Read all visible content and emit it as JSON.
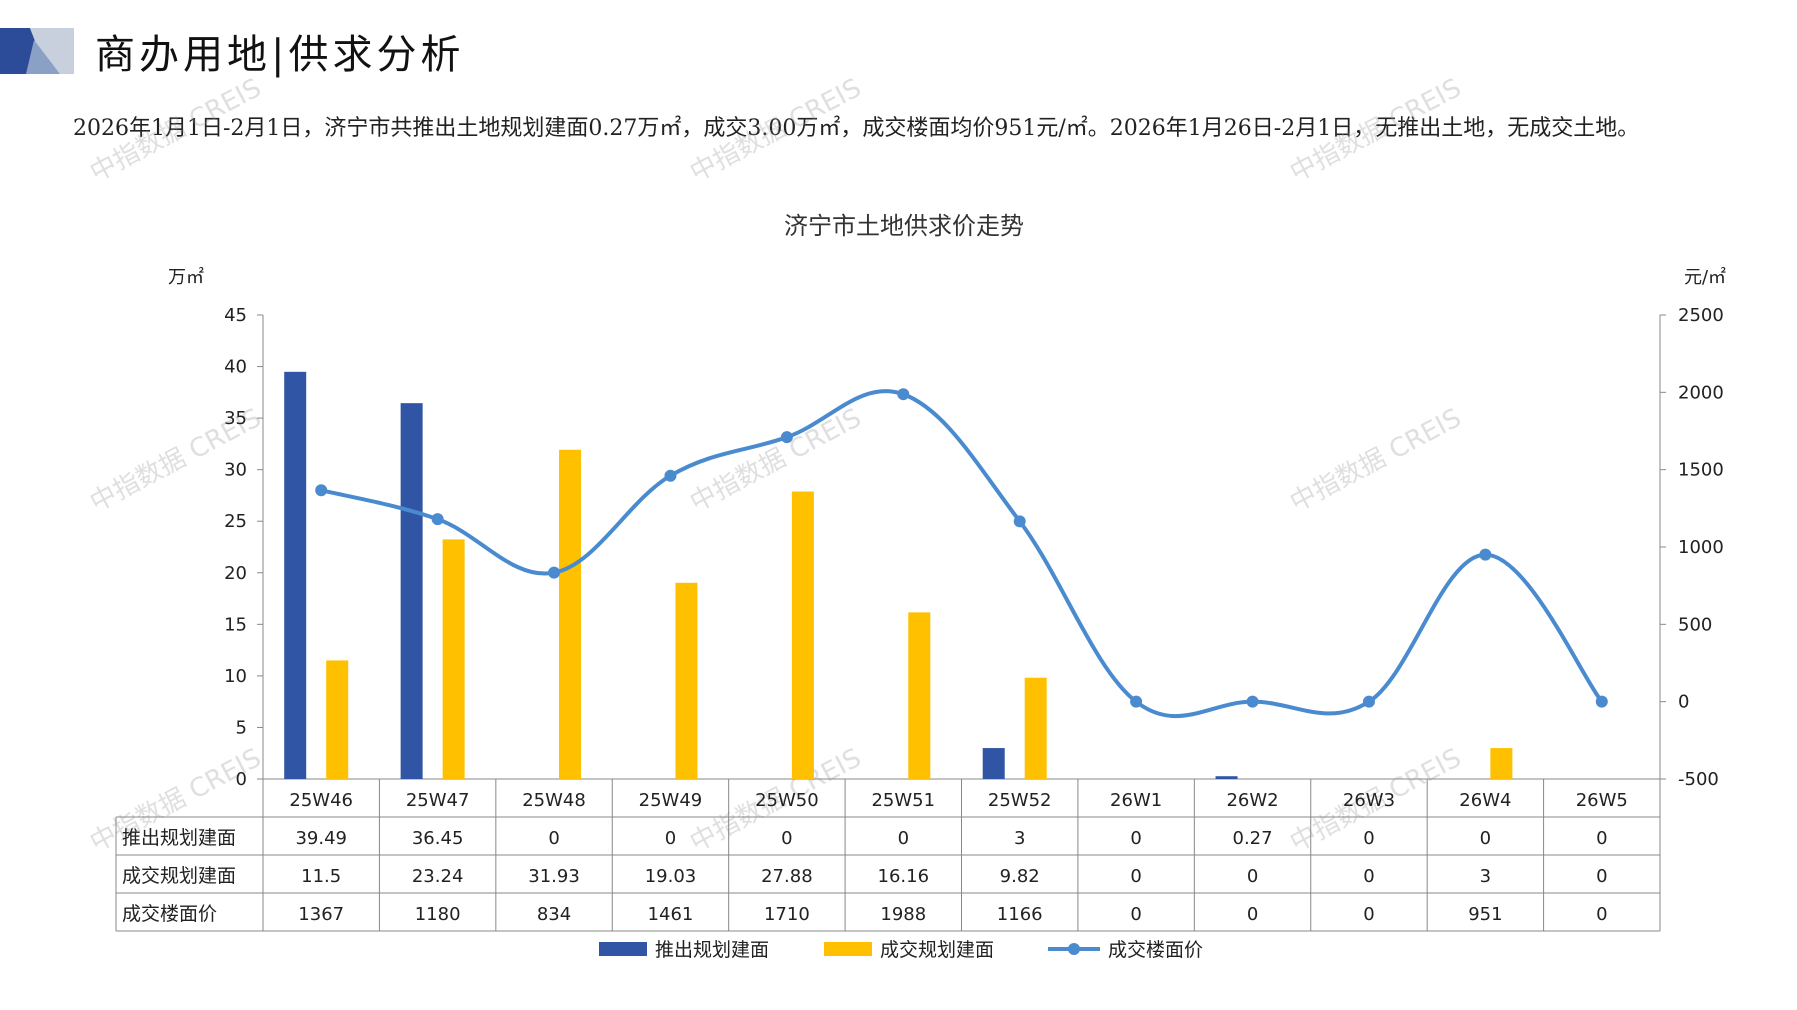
{
  "header": {
    "title": "商办用地|供求分析",
    "summary": "2026年1月1日-2月1日，济宁市共推出土地规划建面0.27万㎡，成交3.00万㎡，成交楼面均价951元/㎡。2026年1月26日-2月1日，无推出土地，无成交土地。"
  },
  "watermark": "中指数据 CREIS",
  "colors": {
    "supply": "#2f55a4",
    "deal": "#ffc000",
    "price": "#4a8bd0",
    "logo_dark": "#2c4c9a",
    "logo_light": "#c8d0dd"
  },
  "chart_data": {
    "type": "bar",
    "title": "济宁市土地供求价走势",
    "y_left_unit": "万㎡",
    "y_right_unit": "元/㎡",
    "ylim_left": [
      0,
      45
    ],
    "yticks_left": [
      "0",
      "5",
      "10",
      "15",
      "20",
      "25",
      "30",
      "35",
      "40",
      "45"
    ],
    "ylim_right": [
      -500,
      2500
    ],
    "yticks_right": [
      "-500",
      "0",
      "500",
      "1000",
      "1500",
      "2000",
      "2500"
    ],
    "categories": [
      "25W46",
      "25W47",
      "25W48",
      "25W49",
      "25W50",
      "25W51",
      "25W52",
      "26W1",
      "26W2",
      "26W3",
      "26W4",
      "26W5"
    ],
    "series": [
      {
        "name": "推出规划建面",
        "type": "bar",
        "axis": "left",
        "values": [
          39.49,
          36.45,
          0,
          0,
          0,
          0,
          3,
          0,
          0.27,
          0,
          0,
          0
        ],
        "labels": [
          "39.49",
          "36.45",
          "0",
          "0",
          "0",
          "0",
          "3",
          "0",
          "0.27",
          "0",
          "0",
          "0"
        ]
      },
      {
        "name": "成交规划建面",
        "type": "bar",
        "axis": "left",
        "values": [
          11.5,
          23.24,
          31.93,
          19.03,
          27.88,
          16.16,
          9.82,
          0,
          0,
          0,
          3,
          0
        ],
        "labels": [
          "11.5",
          "23.24",
          "31.93",
          "19.03",
          "27.88",
          "16.16",
          "9.82",
          "0",
          "0",
          "0",
          "3",
          "0"
        ]
      },
      {
        "name": "成交楼面价",
        "type": "line",
        "axis": "right",
        "values": [
          1367,
          1180,
          834,
          1461,
          1710,
          1988,
          1166,
          0,
          0,
          0,
          951,
          0
        ],
        "labels": [
          "1367",
          "1180",
          "834",
          "1461",
          "1710",
          "1988",
          "1166",
          "0",
          "0",
          "0",
          "951",
          "0"
        ]
      }
    ],
    "legend": "bottom",
    "grid": false
  }
}
